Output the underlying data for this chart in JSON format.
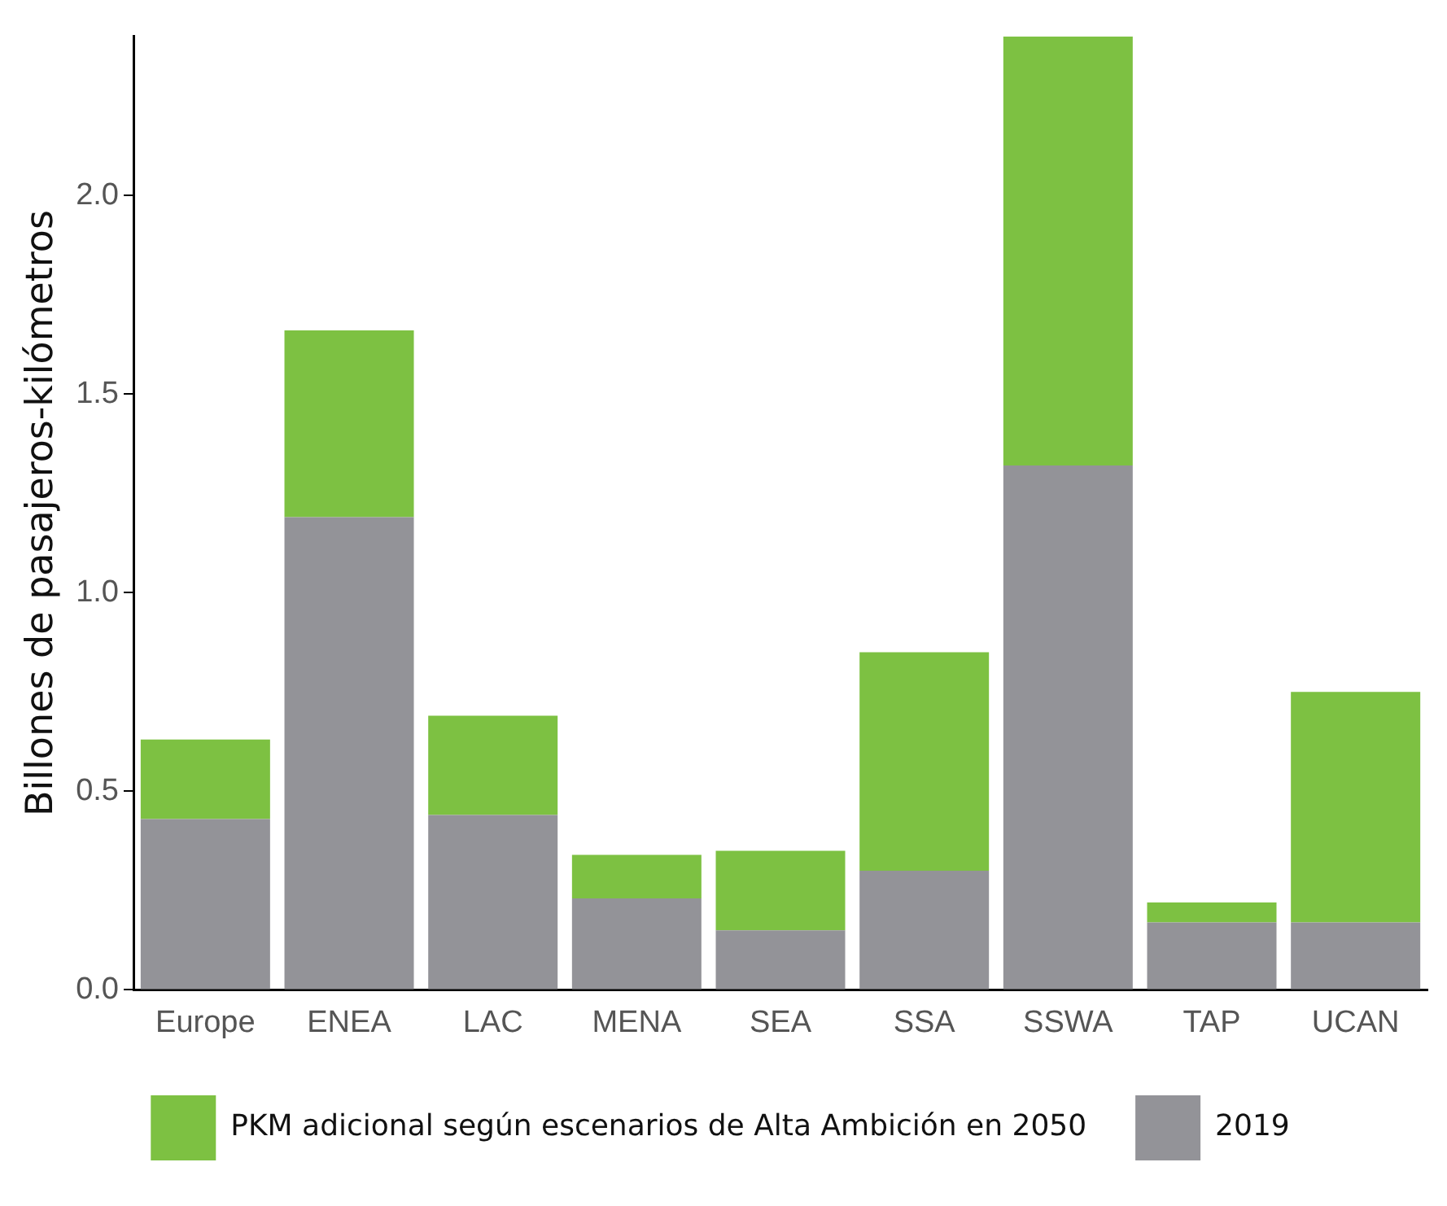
{
  "chart_data": {
    "type": "bar",
    "stacked": true,
    "ylabel": "Billones de pasajeros-kilómetros",
    "categories": [
      "Europe",
      "ENEA",
      "LAC",
      "MENA",
      "SEA",
      "SSA",
      "SSWA",
      "TAP",
      "UCAN"
    ],
    "series": [
      {
        "name": "2019",
        "color": "#939398",
        "values": [
          0.43,
          1.19,
          0.44,
          0.23,
          0.15,
          0.3,
          1.32,
          0.17,
          0.17
        ]
      },
      {
        "name": "PKM adicional según escenarios de Alta Ambición en 2050",
        "color": "#7dc142",
        "values": [
          0.2,
          0.47,
          0.25,
          0.11,
          0.2,
          0.55,
          1.08,
          0.05,
          0.58
        ]
      }
    ],
    "ylim": [
      0,
      2.4
    ],
    "yticks": [
      {
        "value": 0,
        "label": "0.0"
      },
      {
        "value": 0.5,
        "label": "0.5"
      },
      {
        "value": 1,
        "label": "1.0"
      },
      {
        "value": 1.5,
        "label": "1.5"
      },
      {
        "value": 2,
        "label": "2.0"
      }
    ],
    "grid": false,
    "legend": "bottom"
  }
}
